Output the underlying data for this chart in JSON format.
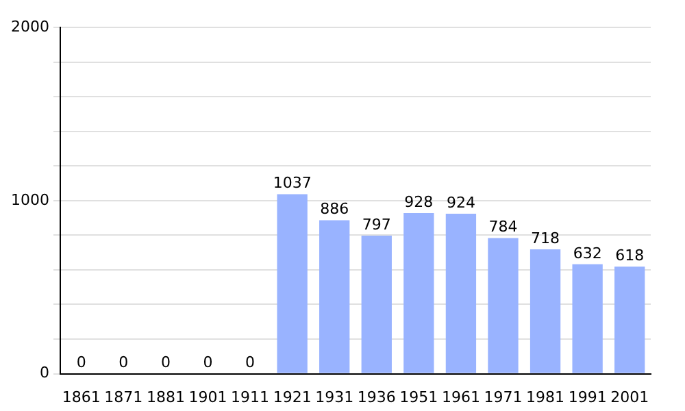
{
  "chart_data": {
    "type": "bar",
    "categories": [
      "1861",
      "1871",
      "1881",
      "1901",
      "1911",
      "1921",
      "1931",
      "1936",
      "1951",
      "1961",
      "1971",
      "1981",
      "1991",
      "2001"
    ],
    "values": [
      0,
      0,
      0,
      0,
      0,
      1037,
      886,
      797,
      928,
      924,
      784,
      718,
      632,
      618
    ],
    "color": "#99b3ff",
    "ylim": [
      0,
      2000
    ],
    "yticks": [
      0,
      {
        "value": 200,
        "label": null
      },
      {
        "value": 400,
        "label": null
      },
      {
        "value": 600,
        "label": null
      },
      {
        "value": 800,
        "label": null
      },
      1000,
      {
        "value": 1200,
        "label": null
      },
      {
        "value": 1400,
        "label": null
      },
      {
        "value": 1600,
        "label": null
      },
      {
        "value": 1800,
        "label": null
      },
      2000
    ],
    "grid": true,
    "data_labels": true
  }
}
